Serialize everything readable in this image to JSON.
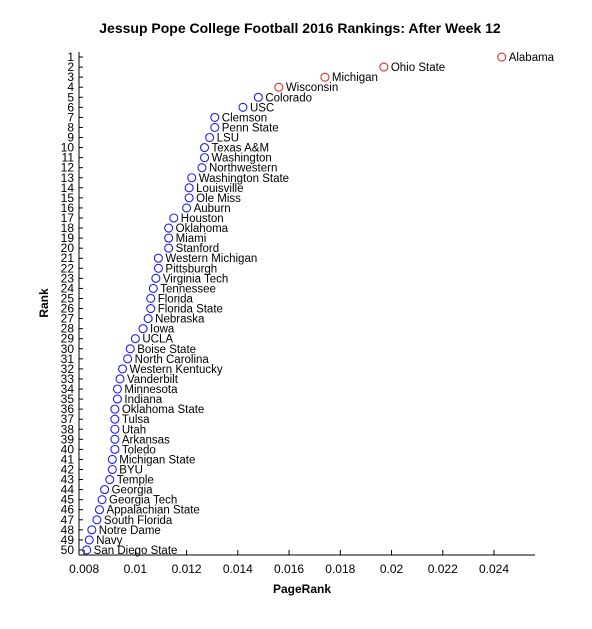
{
  "chart_data": {
    "type": "scatter",
    "title": "Jessup Pope College Football 2016 Rankings: After Week 12",
    "xlabel": "PageRank",
    "ylabel": "Rank",
    "xlim": [
      0.0078,
      0.0256
    ],
    "ylim": [
      0.5,
      50.5
    ],
    "y_reversed": true,
    "grid": false,
    "x_ticks": [
      "0.008",
      "0.01",
      "0.012",
      "0.014",
      "0.016",
      "0.018",
      "0.02",
      "0.022",
      "0.024"
    ],
    "x_tick_values": [
      0.008,
      0.01,
      0.012,
      0.014,
      0.016,
      0.018,
      0.02,
      0.022,
      0.024
    ],
    "y_ticks": [
      1,
      2,
      3,
      4,
      5,
      6,
      7,
      8,
      9,
      10,
      11,
      12,
      13,
      14,
      15,
      16,
      17,
      18,
      19,
      20,
      21,
      22,
      23,
      24,
      25,
      26,
      27,
      28,
      29,
      30,
      31,
      32,
      33,
      34,
      35,
      36,
      37,
      38,
      39,
      40,
      41,
      42,
      43,
      44,
      45,
      46,
      47,
      48,
      49,
      50
    ],
    "highlight_color": "#e0302a",
    "default_color": "#1e1eff",
    "teams": [
      {
        "rank": 1,
        "name": "Alabama",
        "pagerank": 0.0243,
        "highlight": true
      },
      {
        "rank": 2,
        "name": "Ohio State",
        "pagerank": 0.0197,
        "highlight": true
      },
      {
        "rank": 3,
        "name": "Michigan",
        "pagerank": 0.0174,
        "highlight": true
      },
      {
        "rank": 4,
        "name": "Wisconsin",
        "pagerank": 0.0156,
        "highlight": true
      },
      {
        "rank": 5,
        "name": "Colorado",
        "pagerank": 0.0148,
        "highlight": false
      },
      {
        "rank": 6,
        "name": "USC",
        "pagerank": 0.0142,
        "highlight": false
      },
      {
        "rank": 7,
        "name": "Clemson",
        "pagerank": 0.0131,
        "highlight": false
      },
      {
        "rank": 8,
        "name": "Penn State",
        "pagerank": 0.0131,
        "highlight": false
      },
      {
        "rank": 9,
        "name": "LSU",
        "pagerank": 0.0129,
        "highlight": false
      },
      {
        "rank": 10,
        "name": "Texas A&M",
        "pagerank": 0.0127,
        "highlight": false
      },
      {
        "rank": 11,
        "name": "Washington",
        "pagerank": 0.0127,
        "highlight": false
      },
      {
        "rank": 12,
        "name": "Northwestern",
        "pagerank": 0.0126,
        "highlight": false
      },
      {
        "rank": 13,
        "name": "Washington State",
        "pagerank": 0.0122,
        "highlight": false
      },
      {
        "rank": 14,
        "name": "Louisville",
        "pagerank": 0.0121,
        "highlight": false
      },
      {
        "rank": 15,
        "name": "Ole Miss",
        "pagerank": 0.0121,
        "highlight": false
      },
      {
        "rank": 16,
        "name": "Auburn",
        "pagerank": 0.012,
        "highlight": false
      },
      {
        "rank": 17,
        "name": "Houston",
        "pagerank": 0.0115,
        "highlight": false
      },
      {
        "rank": 18,
        "name": "Oklahoma",
        "pagerank": 0.0113,
        "highlight": false
      },
      {
        "rank": 19,
        "name": "Miami",
        "pagerank": 0.0113,
        "highlight": false
      },
      {
        "rank": 20,
        "name": "Stanford",
        "pagerank": 0.0113,
        "highlight": false
      },
      {
        "rank": 21,
        "name": "Western Michigan",
        "pagerank": 0.0109,
        "highlight": false
      },
      {
        "rank": 22,
        "name": "Pittsburgh",
        "pagerank": 0.0109,
        "highlight": false
      },
      {
        "rank": 23,
        "name": "Virginia Tech",
        "pagerank": 0.0108,
        "highlight": false
      },
      {
        "rank": 24,
        "name": "Tennessee",
        "pagerank": 0.0107,
        "highlight": false
      },
      {
        "rank": 25,
        "name": "Florida",
        "pagerank": 0.0106,
        "highlight": false
      },
      {
        "rank": 26,
        "name": "Florida State",
        "pagerank": 0.0106,
        "highlight": false
      },
      {
        "rank": 27,
        "name": "Nebraska",
        "pagerank": 0.0105,
        "highlight": false
      },
      {
        "rank": 28,
        "name": "Iowa",
        "pagerank": 0.0103,
        "highlight": false
      },
      {
        "rank": 29,
        "name": "UCLA",
        "pagerank": 0.01,
        "highlight": false
      },
      {
        "rank": 30,
        "name": "Boise State",
        "pagerank": 0.0098,
        "highlight": false
      },
      {
        "rank": 31,
        "name": "North Carolina",
        "pagerank": 0.0097,
        "highlight": false
      },
      {
        "rank": 32,
        "name": "Western Kentucky",
        "pagerank": 0.0095,
        "highlight": false
      },
      {
        "rank": 33,
        "name": "Vanderbilt",
        "pagerank": 0.0094,
        "highlight": false
      },
      {
        "rank": 34,
        "name": "Minnesota",
        "pagerank": 0.0093,
        "highlight": false
      },
      {
        "rank": 35,
        "name": "Indiana",
        "pagerank": 0.0093,
        "highlight": false
      },
      {
        "rank": 36,
        "name": "Oklahoma State",
        "pagerank": 0.0092,
        "highlight": false
      },
      {
        "rank": 37,
        "name": "Tulsa",
        "pagerank": 0.0092,
        "highlight": false
      },
      {
        "rank": 38,
        "name": "Utah",
        "pagerank": 0.0092,
        "highlight": false
      },
      {
        "rank": 39,
        "name": "Arkansas",
        "pagerank": 0.0092,
        "highlight": false
      },
      {
        "rank": 40,
        "name": "Toledo",
        "pagerank": 0.0092,
        "highlight": false
      },
      {
        "rank": 41,
        "name": "Michigan State",
        "pagerank": 0.0091,
        "highlight": false
      },
      {
        "rank": 42,
        "name": "BYU",
        "pagerank": 0.0091,
        "highlight": false
      },
      {
        "rank": 43,
        "name": "Temple",
        "pagerank": 0.009,
        "highlight": false
      },
      {
        "rank": 44,
        "name": "Georgia",
        "pagerank": 0.0088,
        "highlight": false
      },
      {
        "rank": 45,
        "name": "Georgia Tech",
        "pagerank": 0.0087,
        "highlight": false
      },
      {
        "rank": 46,
        "name": "Appalachian State",
        "pagerank": 0.0086,
        "highlight": false
      },
      {
        "rank": 47,
        "name": "South Florida",
        "pagerank": 0.0085,
        "highlight": false
      },
      {
        "rank": 48,
        "name": "Notre Dame",
        "pagerank": 0.0083,
        "highlight": false
      },
      {
        "rank": 49,
        "name": "Navy",
        "pagerank": 0.0082,
        "highlight": false
      },
      {
        "rank": 50,
        "name": "San Diego State",
        "pagerank": 0.0081,
        "highlight": false
      }
    ]
  }
}
